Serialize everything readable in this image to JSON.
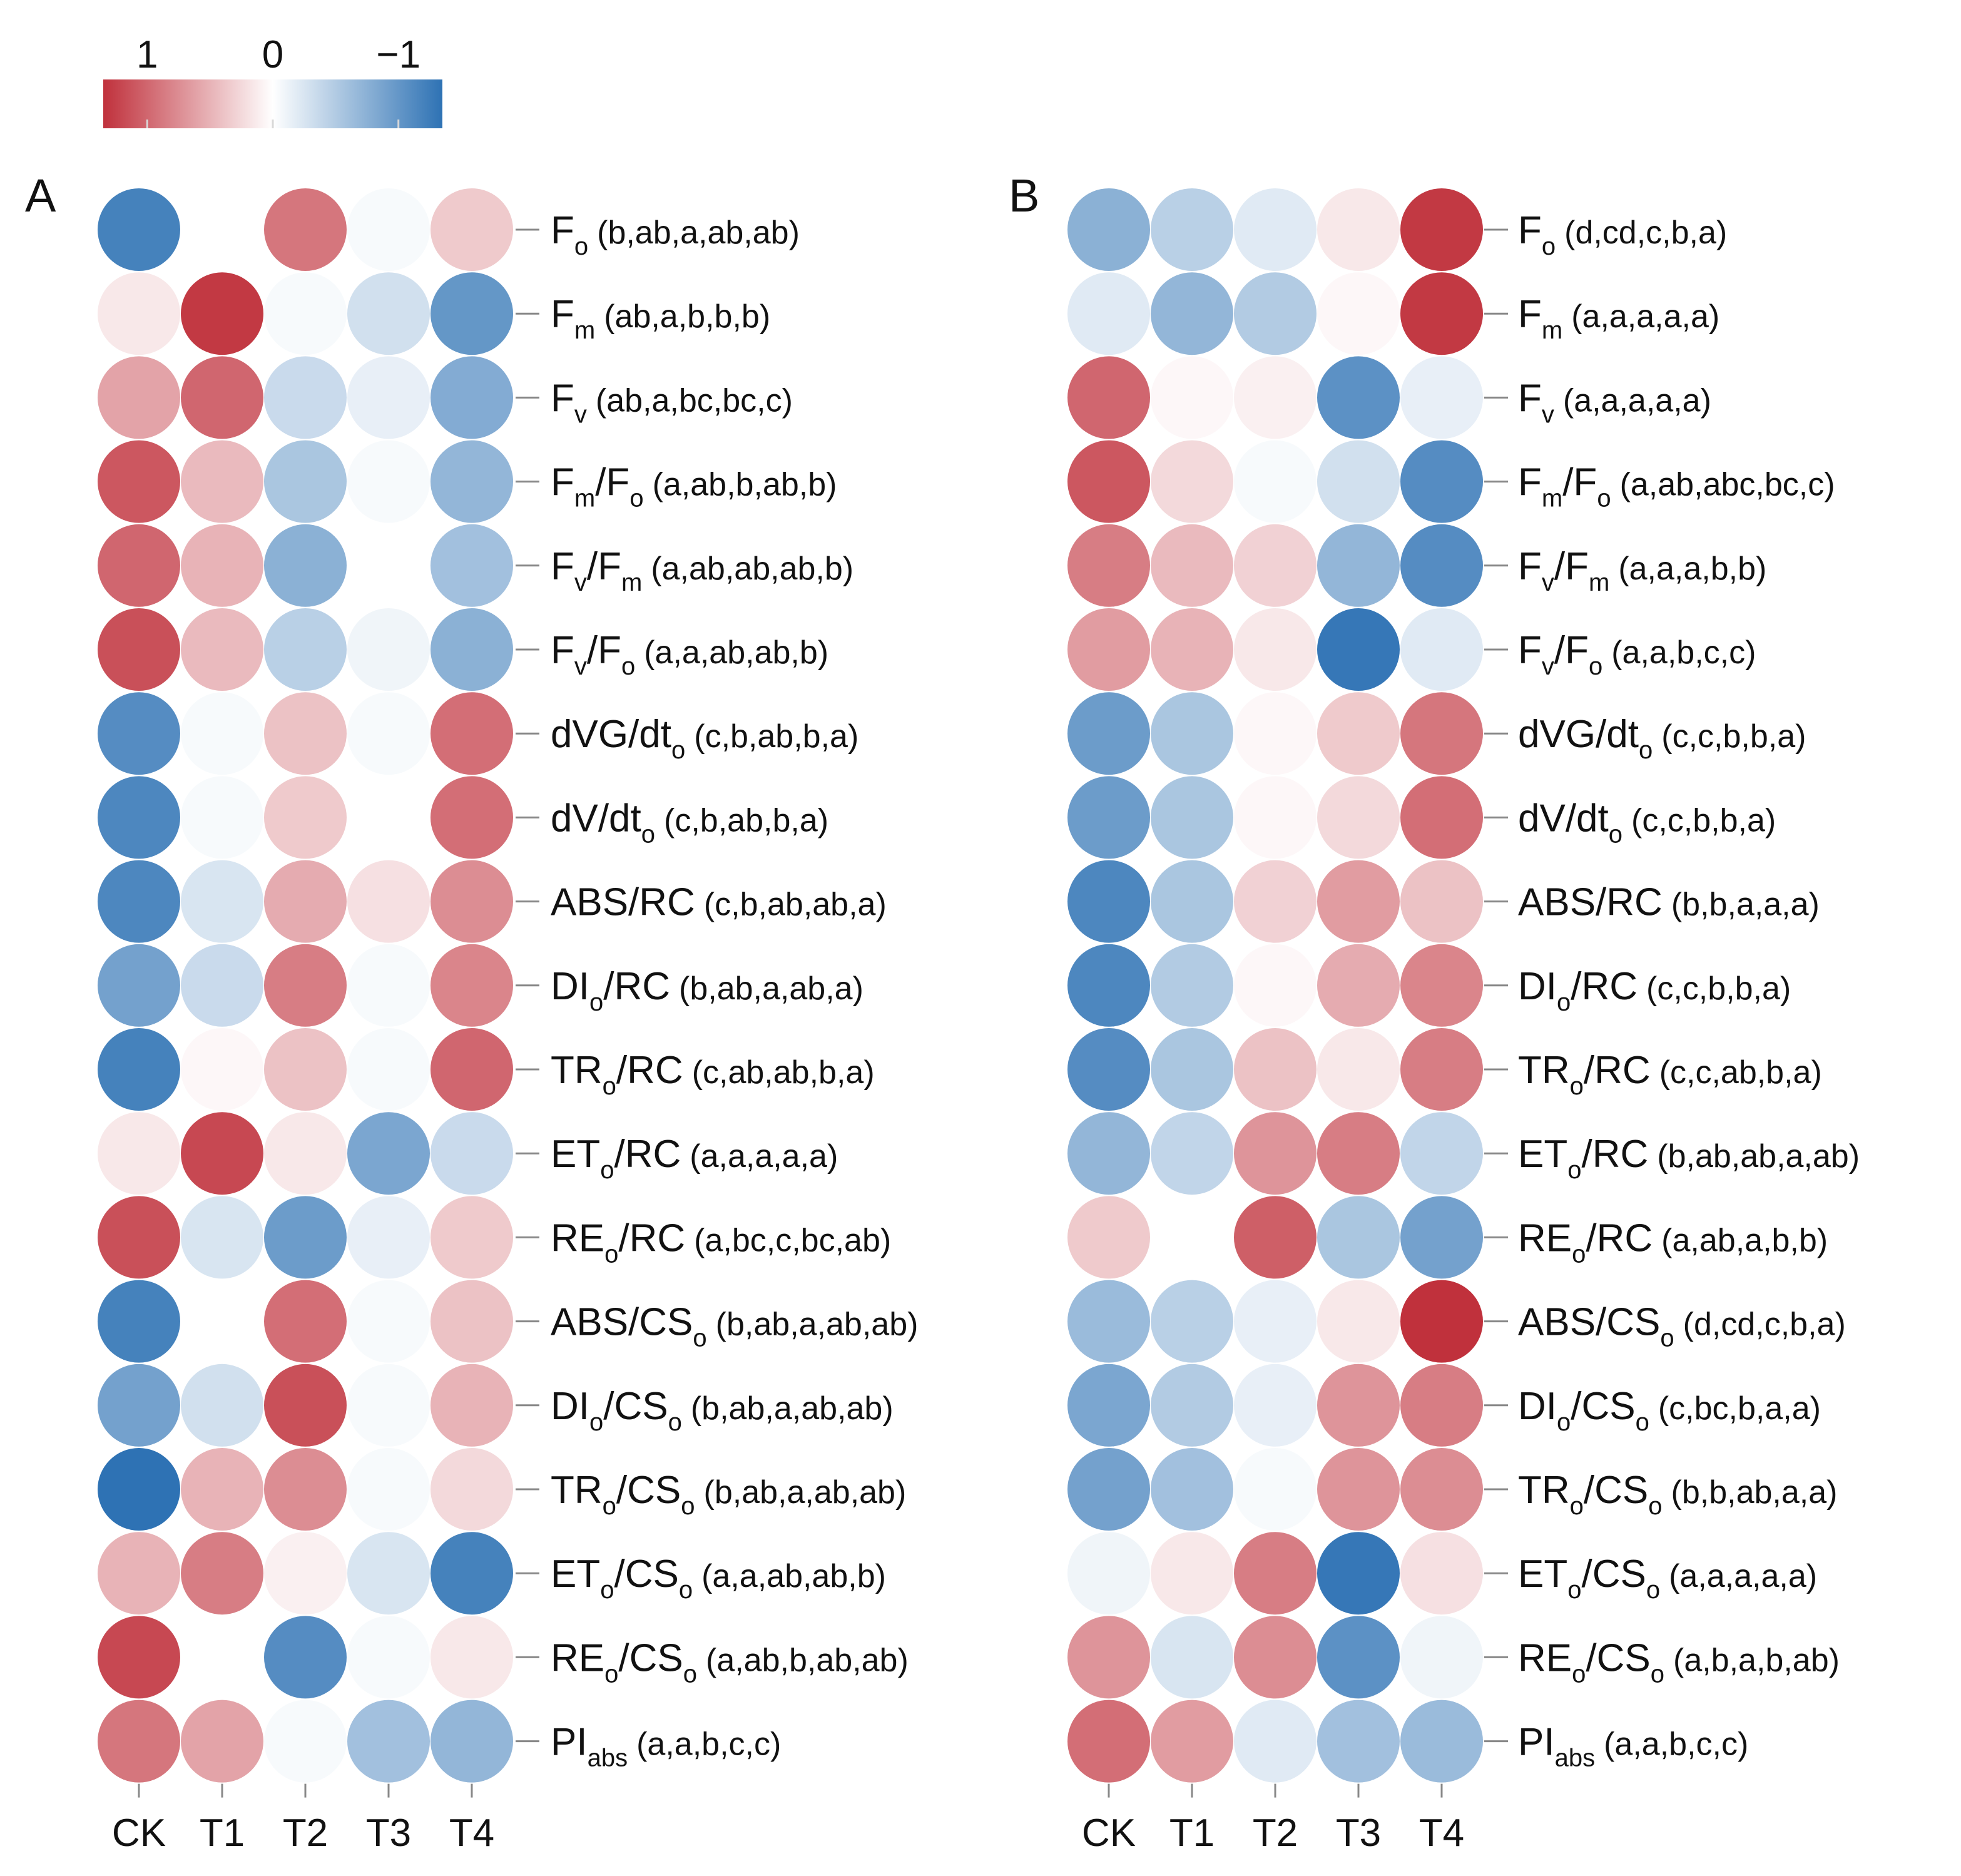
{
  "colorbar": {
    "ticks": [
      {
        "value": 1,
        "label": "1"
      },
      {
        "value": 0,
        "label": "0"
      },
      {
        "value": -1,
        "label": "−1"
      }
    ],
    "range": [
      1.35,
      -1.35
    ]
  },
  "palette": {
    "high": "#c0313c",
    "mid": "#ffffff",
    "low": "#2e72b4",
    "label_line": "#888888"
  },
  "chart_data": [
    {
      "type": "heatmap",
      "panel": "A",
      "columns": [
        "CK",
        "T1",
        "T2",
        "T3",
        "T4"
      ],
      "rows": [
        {
          "main": "F",
          "sub": "o",
          "groups": "(b,ab,a,ab,ab)"
        },
        {
          "main": "F",
          "sub": "m",
          "groups": "(ab,a,b,b,b)"
        },
        {
          "main": "F",
          "sub": "v",
          "groups": "(ab,a,bc,bc,c)"
        },
        {
          "parts": [
            [
              "F",
              ""
            ],
            [
              "m",
              "sub"
            ],
            [
              "/F",
              ""
            ],
            [
              "o",
              "sub"
            ]
          ],
          "groups": "(a,ab,b,ab,b)"
        },
        {
          "parts": [
            [
              "F",
              ""
            ],
            [
              "v",
              "sub"
            ],
            [
              "/F",
              ""
            ],
            [
              "m",
              "sub"
            ]
          ],
          "groups": "(a,ab,ab,ab,b)"
        },
        {
          "parts": [
            [
              "F",
              ""
            ],
            [
              "v",
              "sub"
            ],
            [
              "/F",
              ""
            ],
            [
              "o",
              "sub"
            ]
          ],
          "groups": "(a,a,ab,ab,b)"
        },
        {
          "parts": [
            [
              "dVG/dt",
              ""
            ],
            [
              "o",
              "sub"
            ]
          ],
          "groups": "(c,b,ab,b,a)"
        },
        {
          "parts": [
            [
              "dV/dt",
              ""
            ],
            [
              "o",
              "sub"
            ]
          ],
          "groups": "(c,b,ab,b,a)"
        },
        {
          "parts": [
            [
              "ABS/RC",
              ""
            ]
          ],
          "groups": "(c,b,ab,ab,a)"
        },
        {
          "parts": [
            [
              "DI",
              ""
            ],
            [
              "o",
              "sub"
            ],
            [
              "/RC",
              ""
            ]
          ],
          "groups": "(b,ab,a,ab,a)"
        },
        {
          "parts": [
            [
              "TR",
              ""
            ],
            [
              "o",
              "sub"
            ],
            [
              "/RC",
              ""
            ]
          ],
          "groups": "(c,ab,ab,b,a)"
        },
        {
          "parts": [
            [
              "ET",
              ""
            ],
            [
              "o",
              "sub"
            ],
            [
              "/RC",
              ""
            ]
          ],
          "groups": "(a,a,a,a,a)"
        },
        {
          "parts": [
            [
              "RE",
              ""
            ],
            [
              "o",
              "sub"
            ],
            [
              "/RC",
              ""
            ]
          ],
          "groups": "(a,bc,c,bc,ab)"
        },
        {
          "parts": [
            [
              "ABS/CS",
              ""
            ],
            [
              "o",
              "sub"
            ]
          ],
          "groups": "(b,ab,a,ab,ab)"
        },
        {
          "parts": [
            [
              "DI",
              ""
            ],
            [
              "o",
              "sub"
            ],
            [
              "/CS",
              ""
            ],
            [
              "o",
              "sub"
            ]
          ],
          "groups": "(b,ab,a,ab,ab)"
        },
        {
          "parts": [
            [
              "TR",
              ""
            ],
            [
              "o",
              "sub"
            ],
            [
              "/CS",
              ""
            ],
            [
              "o",
              "sub"
            ]
          ],
          "groups": "(b,ab,a,ab,ab)"
        },
        {
          "parts": [
            [
              "ET",
              ""
            ],
            [
              "o",
              "sub"
            ],
            [
              "/CS",
              ""
            ],
            [
              "o",
              "sub"
            ]
          ],
          "groups": "(a,a,ab,ab,b)"
        },
        {
          "parts": [
            [
              "RE",
              ""
            ],
            [
              "o",
              "sub"
            ],
            [
              "/CS",
              ""
            ],
            [
              "o",
              "sub"
            ]
          ],
          "groups": "(a,ab,b,ab,ab)"
        },
        {
          "parts": [
            [
              "PI",
              ""
            ],
            [
              "abs",
              "sub"
            ]
          ],
          "groups": "(a,a,b,c,c)"
        }
      ],
      "values": [
        [
          -1.2,
          0.0,
          0.9,
          -0.05,
          0.35
        ],
        [
          0.15,
          1.3,
          -0.05,
          -0.3,
          -1.0
        ],
        [
          0.6,
          1.0,
          -0.35,
          -0.15,
          -0.8
        ],
        [
          1.1,
          0.45,
          -0.55,
          -0.05,
          -0.7
        ],
        [
          1.0,
          0.5,
          -0.75,
          0.0,
          -0.6
        ],
        [
          1.15,
          0.45,
          -0.45,
          -0.1,
          -0.75
        ],
        [
          -1.1,
          -0.05,
          0.4,
          -0.05,
          0.95
        ],
        [
          -1.15,
          -0.05,
          0.35,
          0.0,
          0.95
        ],
        [
          -1.15,
          -0.25,
          0.55,
          0.2,
          0.75
        ],
        [
          -0.9,
          -0.35,
          0.85,
          -0.05,
          0.8
        ],
        [
          -1.2,
          0.05,
          0.4,
          -0.05,
          1.0
        ],
        [
          0.15,
          1.2,
          0.15,
          -0.85,
          -0.35
        ],
        [
          1.15,
          -0.25,
          -0.95,
          -0.15,
          0.35
        ],
        [
          -1.2,
          0.0,
          0.95,
          -0.05,
          0.4
        ],
        [
          -0.9,
          -0.3,
          1.15,
          -0.05,
          0.5
        ],
        [
          -1.35,
          0.5,
          0.75,
          -0.05,
          0.25
        ],
        [
          0.5,
          0.85,
          0.1,
          -0.25,
          -1.2
        ],
        [
          1.2,
          0.0,
          -1.1,
          -0.05,
          0.15
        ],
        [
          0.9,
          0.6,
          -0.05,
          -0.6,
          -0.7
        ]
      ]
    },
    {
      "type": "heatmap",
      "panel": "B",
      "columns": [
        "CK",
        "T1",
        "T2",
        "T3",
        "T4"
      ],
      "rows": [
        {
          "main": "F",
          "sub": "o",
          "groups": "(d,cd,c,b,a)"
        },
        {
          "main": "F",
          "sub": "m",
          "groups": "(a,a,a,a,a)"
        },
        {
          "main": "F",
          "sub": "v",
          "groups": "(a,a,a,a,a)"
        },
        {
          "parts": [
            [
              "F",
              ""
            ],
            [
              "m",
              "sub"
            ],
            [
              "/F",
              ""
            ],
            [
              "o",
              "sub"
            ]
          ],
          "groups": "(a,ab,abc,bc,c)"
        },
        {
          "parts": [
            [
              "F",
              ""
            ],
            [
              "v",
              "sub"
            ],
            [
              "/F",
              ""
            ],
            [
              "m",
              "sub"
            ]
          ],
          "groups": "(a,a,a,b,b)"
        },
        {
          "parts": [
            [
              "F",
              ""
            ],
            [
              "v",
              "sub"
            ],
            [
              "/F",
              ""
            ],
            [
              "o",
              "sub"
            ]
          ],
          "groups": "(a,a,b,c,c)"
        },
        {
          "parts": [
            [
              "dVG/dt",
              ""
            ],
            [
              "o",
              "sub"
            ]
          ],
          "groups": "(c,c,b,b,a)"
        },
        {
          "parts": [
            [
              "dV/dt",
              ""
            ],
            [
              "o",
              "sub"
            ]
          ],
          "groups": "(c,c,b,b,a)"
        },
        {
          "parts": [
            [
              "ABS/RC",
              ""
            ]
          ],
          "groups": "(b,b,a,a,a)"
        },
        {
          "parts": [
            [
              "DI",
              ""
            ],
            [
              "o",
              "sub"
            ],
            [
              "/RC",
              ""
            ]
          ],
          "groups": "(c,c,b,b,a)"
        },
        {
          "parts": [
            [
              "TR",
              ""
            ],
            [
              "o",
              "sub"
            ],
            [
              "/RC",
              ""
            ]
          ],
          "groups": "(c,c,ab,b,a)"
        },
        {
          "parts": [
            [
              "ET",
              ""
            ],
            [
              "o",
              "sub"
            ],
            [
              "/RC",
              ""
            ]
          ],
          "groups": "(b,ab,ab,a,ab)"
        },
        {
          "parts": [
            [
              "RE",
              ""
            ],
            [
              "o",
              "sub"
            ],
            [
              "/RC",
              ""
            ]
          ],
          "groups": "(a,ab,a,b,b)"
        },
        {
          "parts": [
            [
              "ABS/CS",
              ""
            ],
            [
              "o",
              "sub"
            ]
          ],
          "groups": "(d,cd,c,b,a)"
        },
        {
          "parts": [
            [
              "DI",
              ""
            ],
            [
              "o",
              "sub"
            ],
            [
              "/CS",
              ""
            ],
            [
              "o",
              "sub"
            ]
          ],
          "groups": "(c,bc,b,a,a)"
        },
        {
          "parts": [
            [
              "TR",
              ""
            ],
            [
              "o",
              "sub"
            ],
            [
              "/CS",
              ""
            ],
            [
              "o",
              "sub"
            ]
          ],
          "groups": "(b,b,ab,a,a)"
        },
        {
          "parts": [
            [
              "ET",
              ""
            ],
            [
              "o",
              "sub"
            ],
            [
              "/CS",
              ""
            ],
            [
              "o",
              "sub"
            ]
          ],
          "groups": "(a,a,a,a,a)"
        },
        {
          "parts": [
            [
              "RE",
              ""
            ],
            [
              "o",
              "sub"
            ],
            [
              "/CS",
              ""
            ],
            [
              "o",
              "sub"
            ]
          ],
          "groups": "(a,b,a,b,ab)"
        },
        {
          "parts": [
            [
              "PI",
              ""
            ],
            [
              "abs",
              "sub"
            ]
          ],
          "groups": "(a,a,b,c,c)"
        }
      ],
      "values": [
        [
          -0.75,
          -0.45,
          -0.2,
          0.15,
          1.3
        ],
        [
          -0.2,
          -0.7,
          -0.5,
          0.05,
          1.3
        ],
        [
          1.0,
          0.05,
          0.1,
          -1.05,
          -0.15
        ],
        [
          1.1,
          0.25,
          -0.05,
          -0.3,
          -1.1
        ],
        [
          0.85,
          0.45,
          0.3,
          -0.7,
          -1.1
        ],
        [
          0.65,
          0.5,
          0.15,
          -1.3,
          -0.2
        ],
        [
          -0.95,
          -0.55,
          0.05,
          0.35,
          0.9
        ],
        [
          -0.95,
          -0.55,
          0.05,
          0.25,
          0.95
        ],
        [
          -1.15,
          -0.55,
          0.3,
          0.65,
          0.4
        ],
        [
          -1.15,
          -0.5,
          0.05,
          0.55,
          0.8
        ],
        [
          -1.1,
          -0.55,
          0.4,
          0.15,
          0.85
        ],
        [
          -0.7,
          -0.4,
          0.7,
          0.85,
          -0.4
        ],
        [
          0.35,
          0.0,
          1.05,
          -0.55,
          -0.9
        ],
        [
          -0.65,
          -0.45,
          -0.15,
          0.15,
          1.35
        ],
        [
          -0.85,
          -0.5,
          -0.15,
          0.7,
          0.85
        ],
        [
          -0.9,
          -0.6,
          -0.05,
          0.7,
          0.75
        ],
        [
          -0.1,
          0.15,
          0.85,
          -1.3,
          0.2
        ],
        [
          0.7,
          -0.25,
          0.75,
          -1.05,
          -0.1
        ],
        [
          0.95,
          0.65,
          -0.2,
          -0.6,
          -0.65
        ]
      ]
    }
  ]
}
